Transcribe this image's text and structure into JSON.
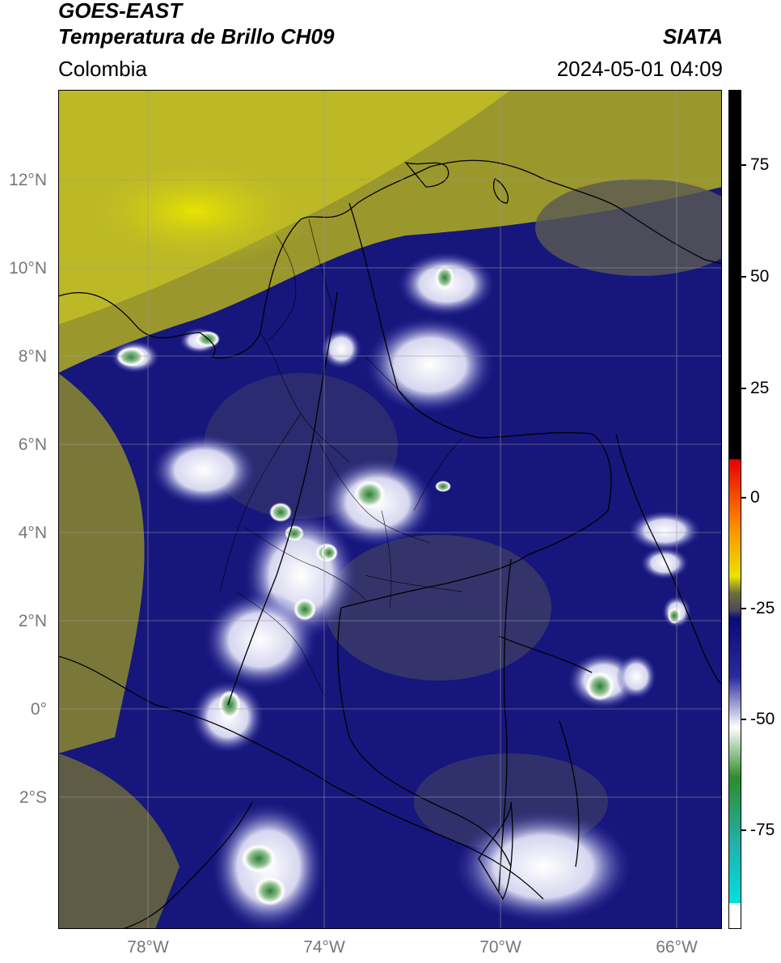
{
  "header": {
    "title_line1": "GOES-EAST",
    "title_line2": "Temperatura de Brillo CH09",
    "region": "Colombia",
    "brand": "SIATA",
    "datetime": "2024-05-01 04:09"
  },
  "map": {
    "projection": "lat-lon",
    "lon_range": [
      -80,
      -65
    ],
    "lat_range": [
      -5,
      14
    ],
    "lat_ticks": [
      "12°N",
      "10°N",
      "8°N",
      "6°N",
      "4°N",
      "2°N",
      "0°",
      "2°S"
    ],
    "lon_ticks": [
      "78°W",
      "74°W",
      "70°W",
      "66°W"
    ],
    "gridlines": true,
    "variable": "Brightness temperature channel 9 (°C)"
  },
  "colorbar": {
    "ticks": [
      "75",
      "50",
      "25",
      "0",
      "-25",
      "-50",
      "-75"
    ],
    "range": [
      -93,
      90
    ],
    "colors": {
      "black": "#000000",
      "red": "#e60000",
      "orange": "#ff8c00",
      "yellow": "#e8e400",
      "olive": "#6e6e3c",
      "gray": "#4a4a5a",
      "navy": "#0a0a78",
      "blue": "#2a2aa0",
      "white": "#ffffff",
      "green": "#2e8b2e",
      "teal": "#20b2aa",
      "cyan": "#00e0e0"
    }
  }
}
